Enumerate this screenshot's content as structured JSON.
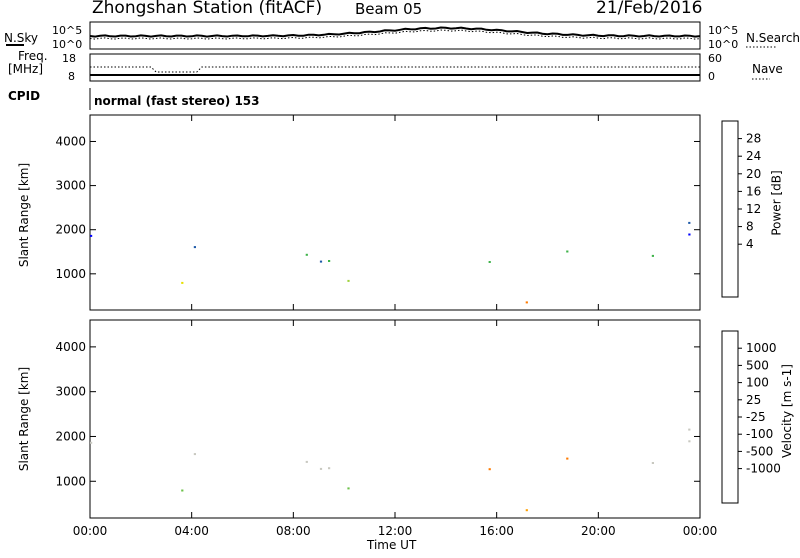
{
  "header": {
    "title": "Zhongshan Station (fitACF)",
    "beam": "Beam 05",
    "date": "21/Feb/2016"
  },
  "top_panels": {
    "nsky_label": "N.Sky",
    "nsky_ticks": [
      "10^5",
      "10^0"
    ],
    "nsearch_label": "N.Search",
    "nsearch_ticks": [
      "10^5",
      "10^0"
    ],
    "freq_label": "Freq.",
    "freq_unit": "[MHz]",
    "freq_ticks": [
      "18",
      "8"
    ],
    "nave_label": "Nave",
    "nave_ticks": [
      "60",
      "0"
    ],
    "cpid_label": "CPID",
    "cpid_text": "normal (fast stereo) 153"
  },
  "chart_data": [
    {
      "type": "heatmap",
      "name": "power",
      "ylabel": "Slant Range [km]",
      "yticks": [
        1000,
        2000,
        3000,
        4000
      ],
      "ylim": [
        180,
        4600
      ],
      "colorbar_label": "Power [dB]",
      "colorbar_ticks": [
        "28",
        "24",
        "20",
        "16",
        "12",
        "8",
        "4"
      ],
      "colorbar_colors": [
        "#ff0000",
        "#ff3c00",
        "#ff7a00",
        "#ffb000",
        "#e6e000",
        "#9fd23c",
        "#3fb34a",
        "#2e8b57",
        "#1e5aa8",
        "#0000ff"
      ],
      "xlabel": "Time UT",
      "xticks": [
        "00:00",
        "04:00",
        "08:00",
        "12:00",
        "16:00",
        "20:00",
        "00:00"
      ],
      "xlim_hours": [
        0,
        24
      ]
    },
    {
      "type": "heatmap",
      "name": "velocity",
      "ylabel": "Slant Range [km]",
      "yticks": [
        1000,
        2000,
        3000,
        4000
      ],
      "ylim": [
        180,
        4600
      ],
      "colorbar_label": "Velocity [m s-1]",
      "colorbar_ticks": [
        "1000",
        "500",
        "100",
        "25",
        "-25",
        "-100",
        "-500",
        "-1000"
      ],
      "colorbar_colors": [
        "#1f3ea8",
        "#2e6da8",
        "#2e8b57",
        "#6cc24a",
        "#c8c8c0",
        "#c8c8c0",
        "#ffa000",
        "#ff7a00",
        "#ff4000",
        "#ff0000"
      ],
      "xlabel": "Time UT",
      "xticks": [
        "00:00",
        "04:00",
        "08:00",
        "12:00",
        "16:00",
        "20:00",
        "00:00"
      ],
      "xlim_hours": [
        0,
        24
      ]
    }
  ]
}
